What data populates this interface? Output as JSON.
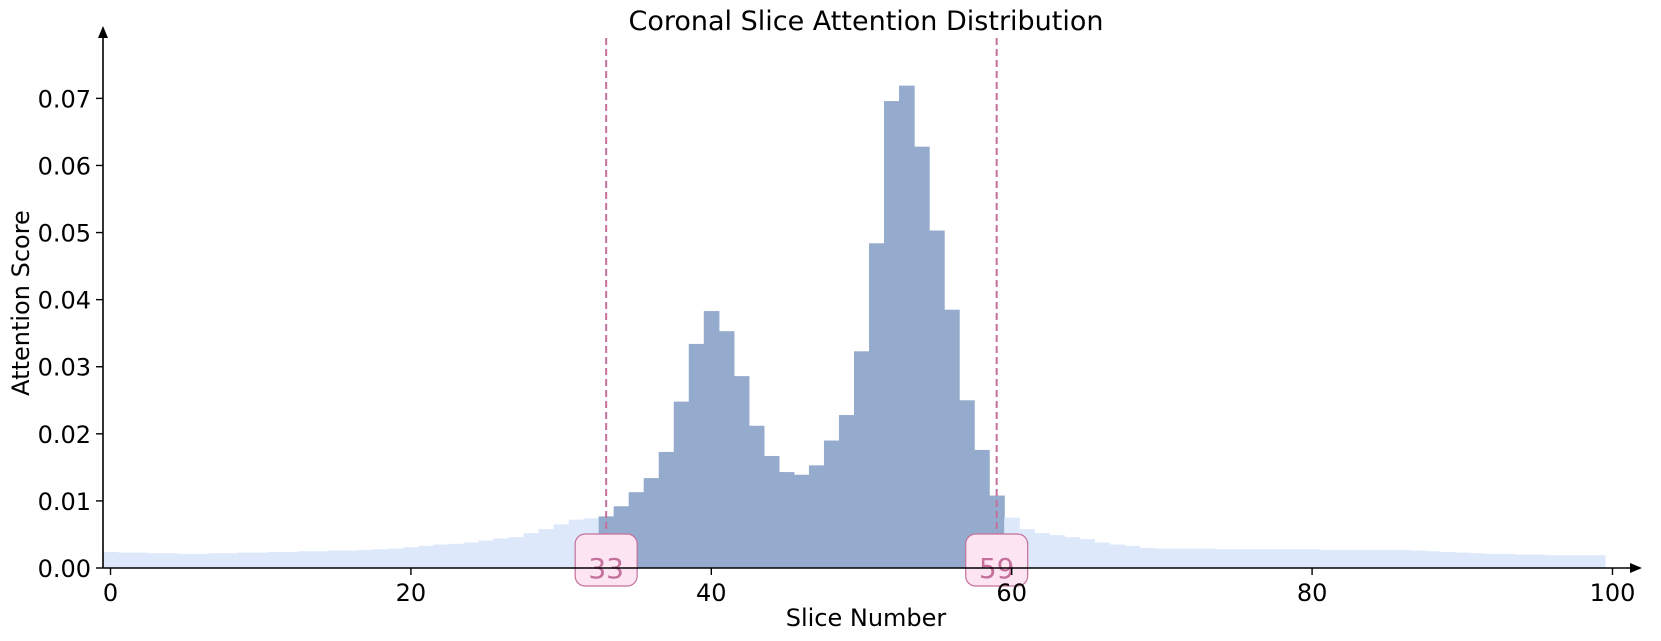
{
  "chart_data": {
    "type": "bar",
    "title": "Coronal Slice Attention Distribution",
    "xlabel": "Slice Number",
    "ylabel": "Attention Score",
    "xlim": [
      -0.5,
      100.5
    ],
    "ylim": [
      0,
      0.079
    ],
    "xticks": [
      "0",
      "20",
      "40",
      "60",
      "80",
      "100"
    ],
    "yticks": [
      "0.00",
      "0.01",
      "0.02",
      "0.03",
      "0.04",
      "0.05",
      "0.06",
      "0.07"
    ],
    "grid": false,
    "selected_range": {
      "start": 33,
      "end": 59,
      "start_label": "33",
      "end_label": "59"
    },
    "colors": {
      "outside": "#dde9fb",
      "inside": "#95abcd",
      "marker": "#c4709a",
      "marker_fill": "#fde4f3"
    },
    "slices": [
      0,
      1,
      2,
      3,
      4,
      5,
      6,
      7,
      8,
      9,
      10,
      11,
      12,
      13,
      14,
      15,
      16,
      17,
      18,
      19,
      20,
      21,
      22,
      23,
      24,
      25,
      26,
      27,
      28,
      29,
      30,
      31,
      32,
      33,
      34,
      35,
      36,
      37,
      38,
      39,
      40,
      41,
      42,
      43,
      44,
      45,
      46,
      47,
      48,
      49,
      50,
      51,
      52,
      53,
      54,
      55,
      56,
      57,
      58,
      59,
      60,
      61,
      62,
      63,
      64,
      65,
      66,
      67,
      68,
      69,
      70,
      71,
      72,
      73,
      74,
      75,
      76,
      77,
      78,
      79,
      80,
      81,
      82,
      83,
      84,
      85,
      86,
      87,
      88,
      89,
      90,
      91,
      92,
      93,
      94,
      95,
      96,
      97,
      98,
      99
    ],
    "values": [
      0.0024,
      0.0023,
      0.0023,
      0.0022,
      0.0022,
      0.0021,
      0.0021,
      0.0022,
      0.0022,
      0.0023,
      0.0023,
      0.0024,
      0.0024,
      0.0025,
      0.0025,
      0.0026,
      0.0026,
      0.0027,
      0.0028,
      0.0029,
      0.0031,
      0.0033,
      0.0035,
      0.0036,
      0.0038,
      0.0041,
      0.0044,
      0.0046,
      0.0052,
      0.0058,
      0.0065,
      0.0072,
      0.0074,
      0.0077,
      0.0092,
      0.0113,
      0.0134,
      0.0173,
      0.0248,
      0.0334,
      0.0383,
      0.0353,
      0.0286,
      0.0212,
      0.0167,
      0.0143,
      0.0139,
      0.0153,
      0.019,
      0.0228,
      0.0323,
      0.0484,
      0.0696,
      0.0719,
      0.0628,
      0.0503,
      0.0385,
      0.025,
      0.0176,
      0.0108,
      0.0075,
      0.0058,
      0.0052,
      0.0049,
      0.0046,
      0.0043,
      0.0038,
      0.0035,
      0.0033,
      0.003,
      0.0029,
      0.0029,
      0.0029,
      0.0029,
      0.0028,
      0.0028,
      0.0028,
      0.0028,
      0.0028,
      0.0028,
      0.0028,
      0.0027,
      0.0027,
      0.0027,
      0.0027,
      0.0027,
      0.0027,
      0.0026,
      0.0025,
      0.0024,
      0.0023,
      0.0022,
      0.0021,
      0.0021,
      0.002,
      0.002,
      0.0019,
      0.0019,
      0.0019,
      0.0019
    ]
  }
}
